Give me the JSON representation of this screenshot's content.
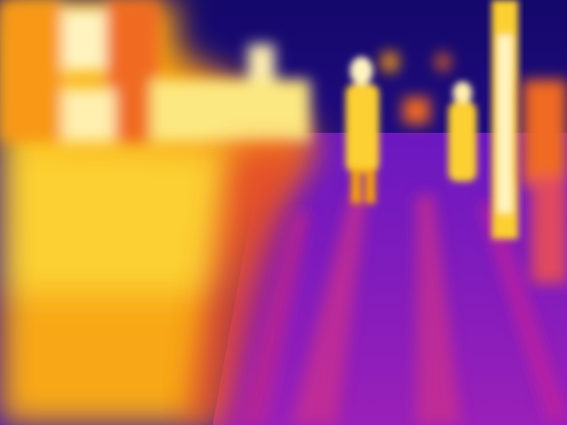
{
  "image": {
    "kind": "thermal-camera-frame",
    "palette": "ironbow",
    "palette_colors": {
      "coldest": "#1a0a6e",
      "cold": "#3a10a8",
      "cool": "#7a1cc8",
      "mid": "#c8249a",
      "warm": "#f0502a",
      "hot": "#f8a010",
      "hotter": "#fcd830",
      "hottest": "#fff4c0"
    }
  }
}
